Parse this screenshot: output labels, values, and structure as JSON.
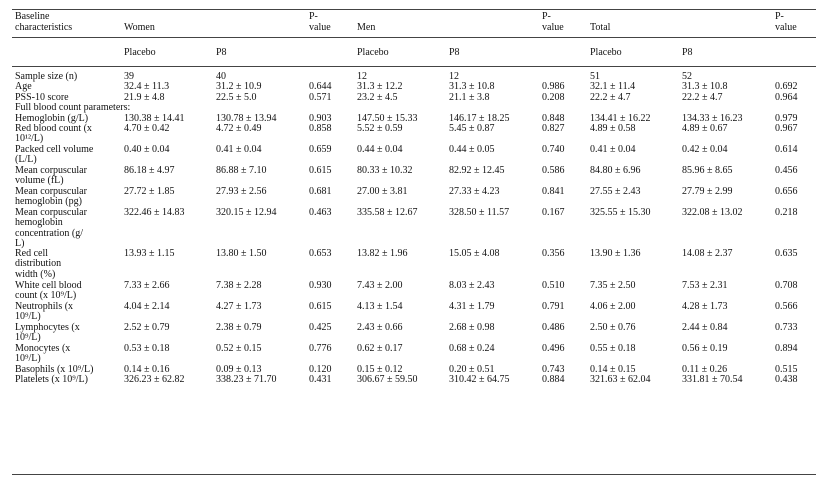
{
  "header": {
    "col_labels": {
      "characteristic_1": "Baseline",
      "characteristic_2": "characteristics",
      "women": "Women",
      "men": "Men",
      "total": "Total",
      "pvalue_1": "P-",
      "pvalue_2": "value"
    },
    "subheaders": {
      "placebo": "Placebo",
      "p8": "P8"
    }
  },
  "rows": [
    {
      "lines": [
        "Sample size (n)"
      ],
      "w_pl": "39",
      "w_p8": "40",
      "w_p": "",
      "m_pl": "12",
      "m_p8": "12",
      "m_p": "",
      "t_pl": "51",
      "t_p8": "52",
      "t_p": ""
    },
    {
      "lines": [
        "Age"
      ],
      "w_pl": "32.4 ± 11.3",
      "w_p8": "31.2 ± 10.9",
      "w_p": "0.644",
      "m_pl": "31.3 ± 12.2",
      "m_p8": "31.3 ± 10.8",
      "m_p": "0.986",
      "t_pl": "32.1 ± 11.4",
      "t_p8": "31.3 ± 10.8",
      "t_p": "0.692"
    },
    {
      "lines": [
        "PSS-10 score"
      ],
      "w_pl": "21.9 ± 4.8",
      "w_p8": "22.5 ± 5.0",
      "w_p": "0.571",
      "m_pl": "23.2 ± 4.5",
      "m_p8": "21.1 ± 3.8",
      "m_p": "0.208",
      "t_pl": "22.2 ± 4.7",
      "t_p8": "22.2 ± 4.7",
      "t_p": "0.964"
    },
    {
      "lines": [
        "Full blood count parameters:"
      ],
      "w_pl": "",
      "w_p8": "",
      "w_p": "",
      "m_pl": "",
      "m_p8": "",
      "m_p": "",
      "t_pl": "",
      "t_p8": "",
      "t_p": ""
    },
    {
      "lines": [
        "Hemoglobin (g/L)"
      ],
      "w_pl": "130.38 ± 14.41",
      "w_p8": "130.78 ± 13.94",
      "w_p": "0.903",
      "m_pl": "147.50 ± 15.33",
      "m_p8": "146.17 ± 18.25",
      "m_p": "0.848",
      "t_pl": "134.41 ± 16.22",
      "t_p8": "134.33 ± 16.23",
      "t_p": "0.979"
    },
    {
      "lines": [
        "Red blood count (x",
        "10¹²/L)"
      ],
      "w_pl": "4.70 ± 0.42",
      "w_p8": "4.72 ± 0.49",
      "w_p": "0.858",
      "m_pl": "5.52 ± 0.59",
      "m_p8": "5.45 ± 0.87",
      "m_p": "0.827",
      "t_pl": "4.89 ± 0.58",
      "t_p8": "4.89 ± 0.67",
      "t_p": "0.967"
    },
    {
      "lines": [
        "Packed cell volume",
        "(L/L)"
      ],
      "w_pl": "0.40 ± 0.04",
      "w_p8": "0.41 ± 0.04",
      "w_p": "0.659",
      "m_pl": "0.44 ± 0.04",
      "m_p8": "0.44 ± 0.05",
      "m_p": "0.740",
      "t_pl": "0.41 ± 0.04",
      "t_p8": "0.42 ± 0.04",
      "t_p": "0.614"
    },
    {
      "lines": [
        "Mean corpuscular",
        "volume (fL)"
      ],
      "w_pl": "86.18 ± 4.97",
      "w_p8": "86.88 ± 7.10",
      "w_p": "0.615",
      "m_pl": "80.33 ± 10.32",
      "m_p8": "82.92 ± 12.45",
      "m_p": "0.586",
      "t_pl": "84.80 ± 6.96",
      "t_p8": "85.96 ± 8.65",
      "t_p": "0.456"
    },
    {
      "lines": [
        "Mean corpuscular",
        "hemoglobin (pg)"
      ],
      "w_pl": "27.72 ± 1.85",
      "w_p8": "27.93 ± 2.56",
      "w_p": "0.681",
      "m_pl": "27.00 ± 3.81",
      "m_p8": "27.33 ± 4.23",
      "m_p": "0.841",
      "t_pl": "27.55 ± 2.43",
      "t_p8": "27.79 ± 2.99",
      "t_p": "0.656"
    },
    {
      "lines": [
        "Mean corpuscular",
        "hemoglobin",
        "concentration (g/",
        "L)"
      ],
      "w_pl": "322.46 ± 14.83",
      "w_p8": "320.15 ± 12.94",
      "w_p": "0.463",
      "m_pl": "335.58 ± 12.67",
      "m_p8": "328.50 ± 11.57",
      "m_p": "0.167",
      "t_pl": "325.55 ± 15.30",
      "t_p8": "322.08 ± 13.02",
      "t_p": "0.218"
    },
    {
      "lines": [
        "Red cell",
        "distribution",
        "width (%)"
      ],
      "w_pl": "13.93 ± 1.15",
      "w_p8": "13.80 ± 1.50",
      "w_p": "0.653",
      "m_pl": "13.82 ± 1.96",
      "m_p8": "15.05 ± 4.08",
      "m_p": "0.356",
      "t_pl": "13.90 ± 1.36",
      "t_p8": "14.08 ± 2.37",
      "t_p": "0.635"
    },
    {
      "lines": [
        "White cell blood",
        "count (x 10⁹/L)"
      ],
      "w_pl": "7.33 ± 2.66",
      "w_p8": "7.38 ± 2.28",
      "w_p": "0.930",
      "m_pl": "7.43 ± 2.00",
      "m_p8": "8.03 ± 2.43",
      "m_p": "0.510",
      "t_pl": "7.35 ± 2.50",
      "t_p8": "7.53 ± 2.31",
      "t_p": "0.708"
    },
    {
      "lines": [
        "Neutrophils (x",
        "10⁹/L)"
      ],
      "w_pl": "4.04 ± 2.14",
      "w_p8": "4.27 ± 1.73",
      "w_p": "0.615",
      "m_pl": "4.13 ± 1.54",
      "m_p8": "4.31 ± 1.79",
      "m_p": "0.791",
      "t_pl": "4.06 ± 2.00",
      "t_p8": "4.28 ± 1.73",
      "t_p": "0.566"
    },
    {
      "lines": [
        "Lymphocytes (x",
        "10⁹/L)"
      ],
      "w_pl": "2.52 ± 0.79",
      "w_p8": "2.38 ± 0.79",
      "w_p": "0.425",
      "m_pl": "2.43 ± 0.66",
      "m_p8": "2.68 ± 0.98",
      "m_p": "0.486",
      "t_pl": "2.50 ± 0.76",
      "t_p8": "2.44 ± 0.84",
      "t_p": "0.733"
    },
    {
      "lines": [
        "Monocytes (x",
        "10⁹/L)"
      ],
      "w_pl": "0.53 ± 0.18",
      "w_p8": "0.52 ± 0.15",
      "w_p": "0.776",
      "m_pl": "0.62 ± 0.17",
      "m_p8": "0.68 ± 0.24",
      "m_p": "0.496",
      "t_pl": "0.55 ± 0.18",
      "t_p8": "0.56 ± 0.19",
      "t_p": "0.894"
    },
    {
      "lines": [
        "Basophils (x 10⁹/L)"
      ],
      "w_pl": "0.14 ± 0.16",
      "w_p8": "0.09 ± 0.13",
      "w_p": "0.120",
      "m_pl": "0.15 ± 0.12",
      "m_p8": "0.20 ± 0.51",
      "m_p": "0.743",
      "t_pl": "0.14 ± 0.15",
      "t_p8": "0.11 ± 0.26",
      "t_p": "0.515"
    },
    {
      "lines": [
        "Platelets (x 10⁹/L)"
      ],
      "w_pl": "326.23 ± 62.82",
      "w_p8": "338.23 ± 71.70",
      "w_p": "0.431",
      "m_pl": "306.67 ± 59.50",
      "m_p8": "310.42 ± 64.75",
      "m_p": "0.884",
      "t_pl": "321.63 ± 62.04",
      "t_p8": "331.81 ± 70.54",
      "t_p": "0.438"
    }
  ]
}
